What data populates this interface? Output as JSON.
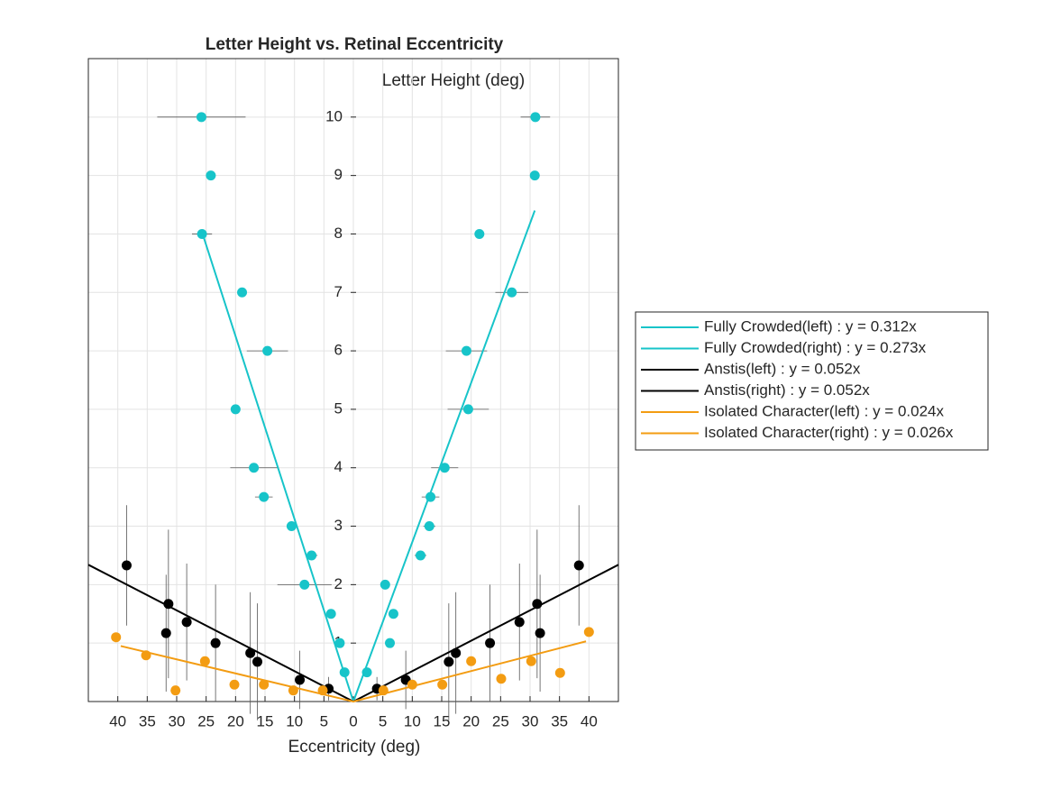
{
  "chart_data": {
    "type": "scatter",
    "title": "Letter Height vs. Retinal Eccentricity",
    "xlabel": "Eccentricity (deg)",
    "ylabel": "Letter Height (deg)",
    "xlim": [
      -45,
      45
    ],
    "ylim": [
      0,
      11
    ],
    "xticks": [
      {
        "value": -40,
        "label": "40"
      },
      {
        "value": -35,
        "label": "35"
      },
      {
        "value": -30,
        "label": "30"
      },
      {
        "value": -25,
        "label": "25"
      },
      {
        "value": -20,
        "label": "20"
      },
      {
        "value": -15,
        "label": "15"
      },
      {
        "value": -10,
        "label": "10"
      },
      {
        "value": -5,
        "label": "5"
      },
      0,
      5,
      10,
      15,
      20,
      25,
      30,
      35,
      40
    ],
    "yticks": [
      1,
      2,
      3,
      4,
      5,
      6,
      7,
      8,
      9,
      10
    ],
    "grid": true,
    "legend": "outside-right",
    "series": [
      {
        "name": "Fully Crowded(left) : y = 0.312x",
        "color": "#17c4c9",
        "x": [
          0,
          -25.6
        ],
        "values": [
          0,
          8.0
        ]
      },
      {
        "name": "Fully Crowded(right) : y = 0.273x",
        "color": "#17c4c9",
        "x": [
          0,
          30.8
        ],
        "values": [
          0,
          8.4
        ]
      },
      {
        "name": "Anstis(left) : y = 0.052x",
        "color": "#000000",
        "x": [
          0,
          -45
        ],
        "values": [
          0,
          2.34
        ]
      },
      {
        "name": "Anstis(right) : y = 0.052x",
        "color": "#000000",
        "x": [
          0,
          45
        ],
        "values": [
          0,
          2.34
        ]
      },
      {
        "name": "Isolated Character(left) : y = 0.024x",
        "color": "#f39c12",
        "x": [
          0,
          -39.5
        ],
        "values": [
          0,
          0.95
        ]
      },
      {
        "name": "Isolated Character(right) : y = 0.026x",
        "color": "#f39c12",
        "x": [
          0,
          39.5
        ],
        "values": [
          0,
          1.03
        ]
      }
    ],
    "points": [
      {
        "color": "#17c4c9",
        "x": [
          -25.8,
          -24.2,
          -25.7,
          -18.9,
          -14.6,
          -20,
          -16.9,
          -15.2,
          -10.5,
          -7.1,
          -8.3,
          -3.8,
          -2.3,
          -1.5
        ],
        "values": [
          10,
          9,
          8,
          7,
          6,
          5,
          4,
          3.5,
          3,
          2.5,
          2,
          1.5,
          1,
          0.5
        ],
        "xerr": [
          7.5,
          0,
          1.7,
          0,
          3.5,
          0,
          4,
          1.5,
          0,
          1,
          4.6,
          0,
          0,
          0
        ]
      },
      {
        "color": "#17c4c9",
        "x": [
          30.9,
          30.8,
          21.4,
          26.9,
          19.2,
          19.5,
          15.5,
          13.1,
          12.9,
          11.4,
          5.4,
          6.8,
          6.2,
          2.3
        ],
        "values": [
          10,
          9,
          8,
          7,
          6,
          5,
          4,
          3.5,
          3,
          2.5,
          2,
          1.5,
          1,
          0.5
        ],
        "xerr": [
          2.5,
          0,
          0,
          2.8,
          3.5,
          3.5,
          2.3,
          1.5,
          1,
          1,
          0,
          0,
          0,
          0
        ]
      },
      {
        "color": "#000000",
        "x": [
          -38.5,
          -31.4,
          -31.8,
          -28.3,
          -23.4,
          -17.5,
          -16.3,
          -9.1,
          -4.2
        ],
        "values": [
          2.33,
          1.67,
          1.17,
          1.36,
          1.0,
          0.83,
          0.68,
          0.37,
          0.22
        ],
        "yerr": [
          1.03,
          1.27,
          1.0,
          1.0,
          1.0,
          1.04,
          1.0,
          0.5,
          0.2
        ]
      },
      {
        "color": "#000000",
        "x": [
          38.3,
          31.2,
          31.7,
          28.2,
          23.2,
          17.4,
          16.2,
          8.9,
          4
        ],
        "values": [
          2.33,
          1.67,
          1.17,
          1.36,
          1.0,
          0.83,
          0.68,
          0.37,
          0.22
        ],
        "yerr": [
          1.03,
          1.27,
          1.0,
          1.0,
          1.0,
          1.04,
          1.0,
          0.5,
          0.2
        ]
      },
      {
        "color": "#f39c12",
        "x": [
          -40.3,
          -35.2,
          -30.2,
          -25.2,
          -20.2,
          -15.2,
          -10.2,
          -5.2
        ],
        "values": [
          1.1,
          0.79,
          0.19,
          0.69,
          0.29,
          0.29,
          0.19,
          0.19
        ]
      },
      {
        "color": "#f39c12",
        "x": [
          40,
          35.1,
          30.2,
          25.1,
          20,
          15.1,
          10,
          5.1
        ],
        "values": [
          1.19,
          0.49,
          0.69,
          0.39,
          0.69,
          0.29,
          0.29,
          0.19
        ]
      }
    ]
  }
}
